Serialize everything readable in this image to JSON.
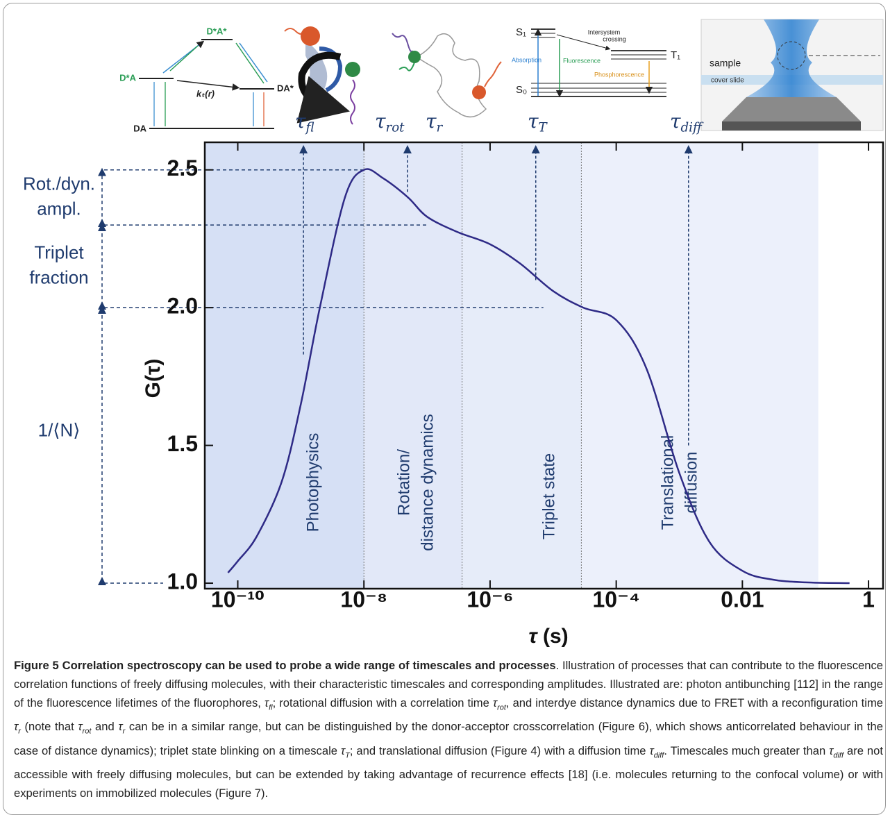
{
  "chart_data": {
    "type": "line",
    "xlabel": {
      "sym": "τ",
      "rest": " (s)"
    },
    "ylabel": "G(τ)",
    "log_x": true,
    "xlim": [
      3e-11,
      1.7
    ],
    "ylim": [
      0.98,
      2.6
    ],
    "xticks": [
      {
        "value": 1e-10,
        "label": "10⁻¹⁰"
      },
      {
        "value": 1e-08,
        "label": "10⁻⁸"
      },
      {
        "value": 1e-06,
        "label": "10⁻⁶"
      },
      {
        "value": 0.0001,
        "label": "10⁻⁴"
      },
      0.01,
      1
    ],
    "yticks": [
      {
        "value": 1,
        "label": "1.0"
      },
      1.5,
      {
        "value": 2,
        "label": "2.0"
      },
      2.5
    ],
    "x": [
      7e-11,
      1e-10,
      2e-10,
      5e-10,
      1e-09,
      2e-09,
      5e-09,
      1e-08,
      2e-08,
      5e-08,
      1e-07,
      3e-07,
      1e-06,
      3e-06,
      1e-05,
      3e-05,
      0.0001,
      0.0003,
      0.001,
      0.003,
      0.01,
      0.03,
      0.1,
      0.5
    ],
    "series": [
      {
        "color": "#2e2a86",
        "values": [
          1.038,
          1.08,
          1.17,
          1.37,
          1.65,
          2.0,
          2.4,
          2.5,
          2.47,
          2.4,
          2.33,
          2.275,
          2.23,
          2.16,
          2.06,
          2.0,
          1.955,
          1.78,
          1.4,
          1.15,
          1.045,
          1.013,
          1.003,
          1.0
        ]
      }
    ],
    "regions": [
      {
        "lines": [
          "Photophysics"
        ],
        "range": [
          3e-11,
          1e-08
        ],
        "color": "#d6e0f5"
      },
      {
        "lines": [
          "Rotation/",
          "distance dynamics"
        ],
        "range": [
          1e-08,
          3.6e-07
        ],
        "color": "#e2e8f8"
      },
      {
        "lines": [
          "Triplet state"
        ],
        "range": [
          3.6e-07,
          2.8e-05
        ],
        "color": "#e6ecf9"
      },
      {
        "lines": [
          "Translational",
          "diffusion"
        ],
        "range": [
          2.8e-05,
          0.16
        ],
        "color": "#ecf0fb"
      }
    ],
    "markers": [
      {
        "x": 1.1e-09,
        "from": 1.83
      },
      {
        "x": 4.9e-08,
        "from": 2.42
      },
      {
        "x": 5.3e-06,
        "from": 2.1
      },
      {
        "x": 0.0014,
        "from": 1.5
      }
    ],
    "amplitudes": [
      {
        "lines": [
          "Rot./dyn.",
          "ampl."
        ],
        "range": [
          2.3,
          2.5
        ]
      },
      {
        "lines": [
          "Triplet",
          "fraction"
        ],
        "range": [
          2.0,
          2.3
        ]
      },
      {
        "lines": [
          "1/⟨N⟩"
        ],
        "range": [
          1.0,
          2.0
        ]
      }
    ],
    "guides": [
      {
        "y": 2.5,
        "x_end": 1e-08
      },
      {
        "y": 2.3,
        "x_end": 1e-07
      },
      {
        "y": 2.0,
        "x_end": 7e-06
      }
    ]
  },
  "illustrations": {
    "taus": [
      {
        "sym": "τ",
        "sub": "fl"
      },
      {
        "sym": "τ",
        "sub": "rot"
      },
      {
        "sym": "τ",
        "sub": "r"
      },
      {
        "sym": "τ",
        "sub": "T"
      },
      {
        "sym": "τ",
        "sub": "diff"
      }
    ],
    "fret": {
      "excited": "D*A*",
      "donor": "D*A",
      "acceptor": "DA*",
      "ground": "DA",
      "rate": "kₜ(r)"
    },
    "jablonski": {
      "s1": "S₁",
      "s0": "S₀",
      "t1": "T₁",
      "isc": [
        "Intersystem",
        "crossing"
      ],
      "absorption": "Absorption",
      "fluorescence": "Fluorescence",
      "phosphorescence": "Phosphorescence"
    },
    "microscope": {
      "sample": "sample",
      "slide": "cover slide"
    }
  },
  "caption": {
    "title": "Figure 5 Correlation spectroscopy can be used to probe a wide range of timescales and processes",
    "body": [
      ". Illustration of processes that can contribute to the fluorescence correlation functions of freely diffusing molecules, with their characteristic timescales and corresponding amplitudes. Illustrated are: photon antibunching [112] in the range of the fluorescence lifetimes of the fluorophores, ",
      {
        "sym": "τ",
        "sub": "fl"
      },
      "; rotational diffusion with a correlation time ",
      {
        "sym": "τ",
        "sub": "rot"
      },
      ", and interdye distance dynamics due to FRET with a reconfiguration time ",
      {
        "sym": "τ",
        "sub": "r"
      },
      " (note that ",
      {
        "sym": "τ",
        "sub": "rot"
      },
      " and ",
      {
        "sym": "τ",
        "sub": "r"
      },
      " can be in a similar range, but can be distinguished by the donor-acceptor crosscorrelation (Figure 6), which shows anticorrelated behaviour in the case of distance dynamics); triplet state blinking on a timescale ",
      {
        "sym": "τ",
        "sub": "T"
      },
      "; and translational diffusion (Figure 4) with a diffusion time ",
      {
        "sym": "τ",
        "sub": "diff"
      },
      ". Timescales much greater than ",
      {
        "sym": "τ",
        "sub": "diff"
      },
      " are not accessible with freely diffusing molecules, but can be extended by taking advantage of recurrence effects [18] (i.e. molecules returning to the confocal volume) or with experiments on immobilized molecules (Figure 7)."
    ]
  }
}
